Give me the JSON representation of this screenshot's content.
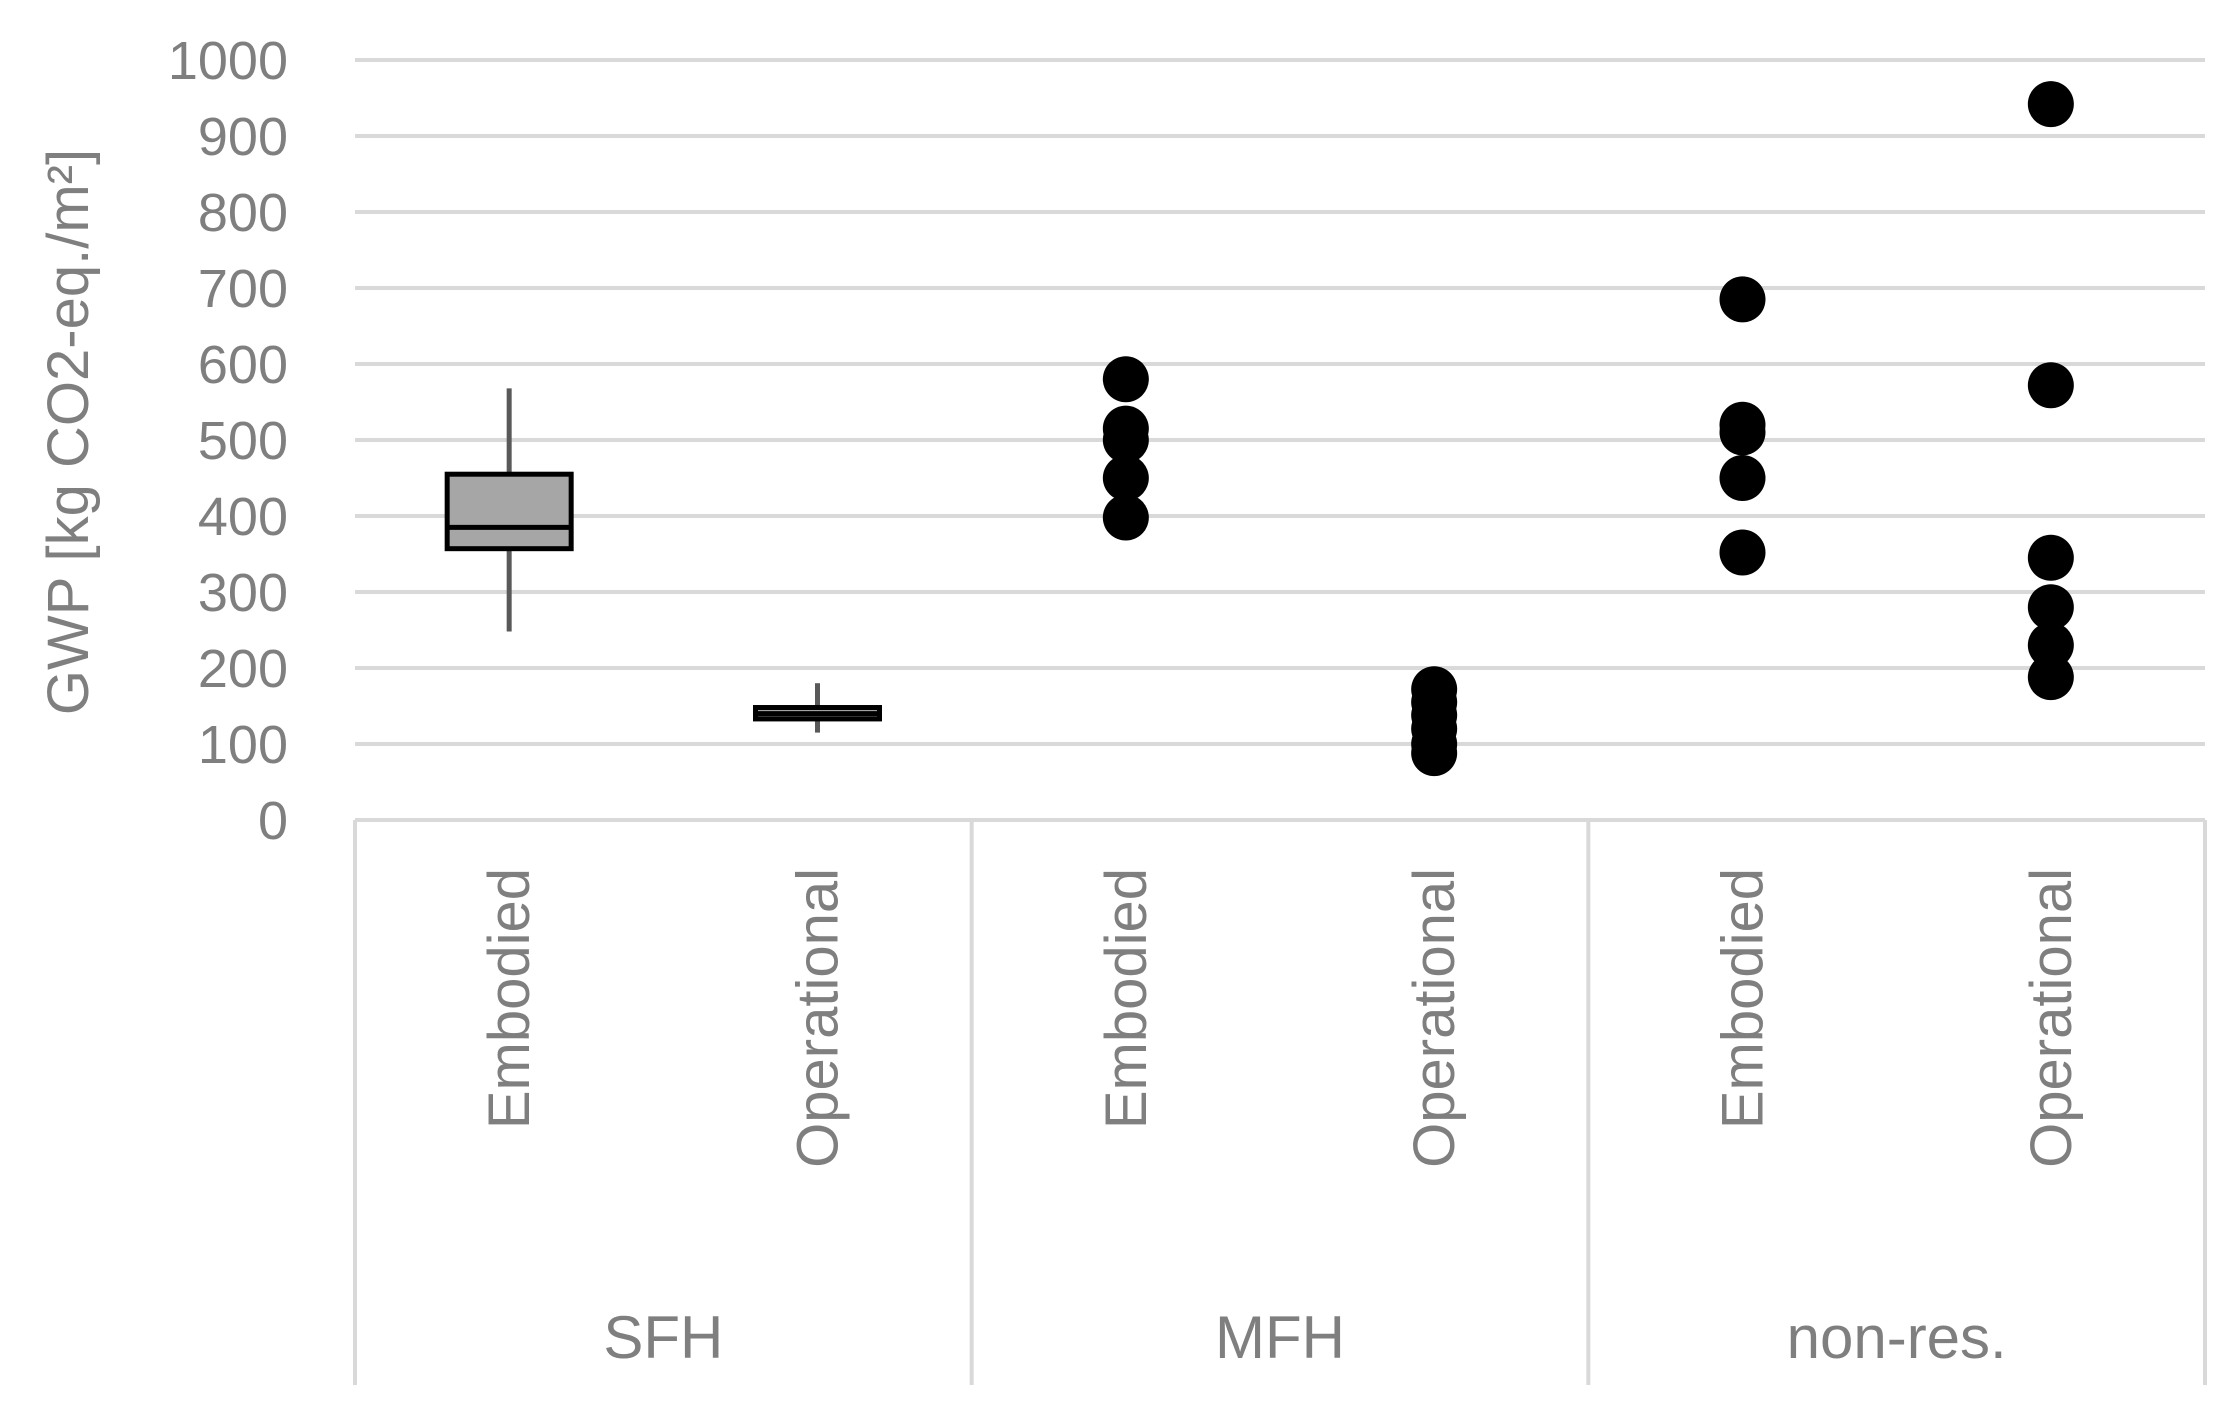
{
  "chart_data": {
    "type": "scatter",
    "ylabel": "GWP [kg CO2-eq./m²]",
    "ylim": [
      0,
      1000
    ],
    "yticks": [
      0,
      100,
      200,
      300,
      400,
      500,
      600,
      700,
      800,
      900,
      1000
    ],
    "grid": true,
    "groups": [
      "SFH",
      "MFH",
      "non-res."
    ],
    "categories": [
      {
        "group": "SFH",
        "label": "Embodied"
      },
      {
        "group": "SFH",
        "label": "Operational"
      },
      {
        "group": "MFH",
        "label": "Embodied"
      },
      {
        "group": "MFH",
        "label": "Operational"
      },
      {
        "group": "non-res.",
        "label": "Embodied"
      },
      {
        "group": "non-res.",
        "label": "Operational"
      }
    ],
    "boxes": [
      {
        "category_index": 0,
        "min": 248,
        "q1": 357,
        "median": 385,
        "q3": 455,
        "max": 568
      },
      {
        "category_index": 1,
        "min": 115,
        "q1": 133,
        "median": 140,
        "q3": 148,
        "max": 180
      }
    ],
    "points": [
      {
        "category_index": 2,
        "values": [
          580,
          515,
          500,
          450,
          398
        ]
      },
      {
        "category_index": 3,
        "values": [
          172,
          155,
          138,
          120,
          100,
          88
        ]
      },
      {
        "category_index": 4,
        "values": [
          685,
          520,
          510,
          450,
          352
        ]
      },
      {
        "category_index": 5,
        "values": [
          942,
          572,
          345,
          280,
          230,
          188
        ]
      }
    ],
    "colors": {
      "grid": "#d9d9d9",
      "text": "#7f7f7f",
      "box_fill": "#a6a6a6",
      "box_stroke": "#000000",
      "whisker": "#595959",
      "point": "#000000"
    }
  }
}
